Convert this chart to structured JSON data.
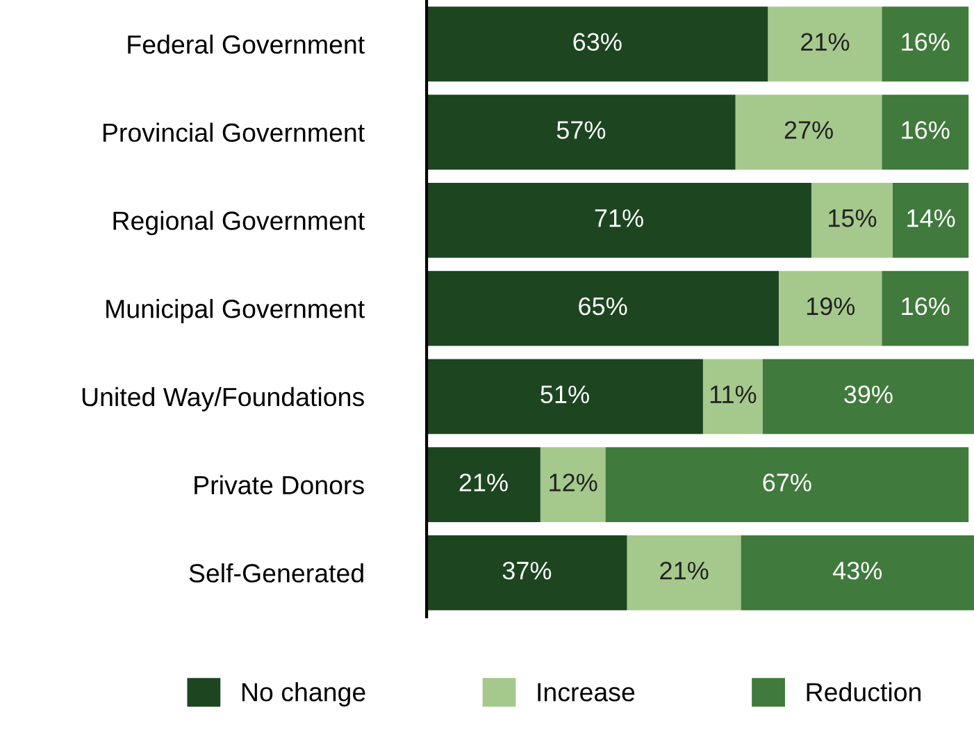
{
  "chart_data": {
    "type": "bar",
    "orientation": "horizontal",
    "stacked": true,
    "categories": [
      "Federal Government",
      "Provincial Government",
      "Regional Government",
      "Municipal Government",
      "United Way/Foundations",
      "Private Donors",
      "Self-Generated"
    ],
    "series": [
      {
        "name": "No change",
        "color": "#1c4520",
        "values": [
          63,
          57,
          71,
          65,
          51,
          21,
          37
        ],
        "value_labels": [
          "63%",
          "57%",
          "71%",
          "65%",
          "51%",
          "21%",
          "37%"
        ]
      },
      {
        "name": "Increase",
        "color": "#a5c98d",
        "values": [
          21,
          27,
          15,
          19,
          11,
          12,
          21
        ],
        "value_labels": [
          "21%",
          "27%",
          "15%",
          "19%",
          "11%",
          "12%",
          "21%"
        ]
      },
      {
        "name": "Reduction",
        "color": "#407a3c",
        "values": [
          16,
          16,
          14,
          16,
          39,
          67,
          43
        ],
        "value_labels": [
          "16%",
          "16%",
          "14%",
          "16%",
          "39%",
          "67%",
          "43%"
        ]
      }
    ],
    "tick_labels": "y",
    "legend": "bottom"
  }
}
